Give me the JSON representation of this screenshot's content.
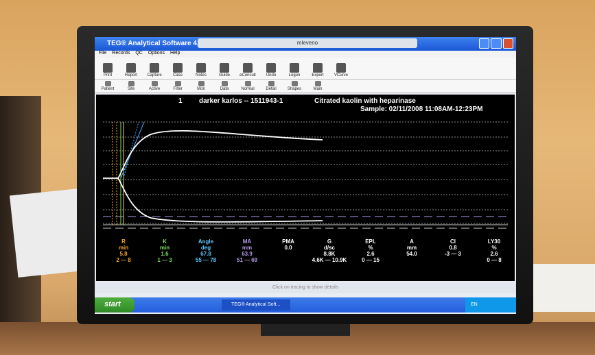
{
  "window": {
    "title": "TEG® Analytical Software 4.2.3",
    "tab_title": "mleveno"
  },
  "menu": [
    "File",
    "Records",
    "QC",
    "Options",
    "Help"
  ],
  "toolbar1": [
    "Print",
    "Report",
    "Capture",
    "Case",
    "Notes",
    "Guide",
    "eConsult",
    "Undo",
    "Logon",
    "Export",
    "VCurve"
  ],
  "toolbar2": [
    "Patient",
    "Site",
    "Active",
    "Filter",
    "Mon",
    "Data",
    "Normal",
    "Detail",
    "Shapes",
    "Main"
  ],
  "header": {
    "channel": "1",
    "patient": "darker karlos -- 1511943-1",
    "test": "Citrated kaolin with heparinase",
    "sample": "Sample: 02/11/2008 11:08AM-12:23PM"
  },
  "parameters": [
    {
      "name": "R",
      "unit": "min",
      "value": "5.8",
      "range": "2 — 8"
    },
    {
      "name": "K",
      "unit": "min",
      "value": "1.6",
      "range": "1 — 3"
    },
    {
      "name": "Angle",
      "unit": "deg",
      "value": "67.8",
      "range": "55 — 78"
    },
    {
      "name": "MA",
      "unit": "mm",
      "value": "63.9",
      "range": "51 — 69"
    },
    {
      "name": "PMA",
      "value": "0.0"
    },
    {
      "name": "G",
      "unit": "d/sc",
      "value": "8.8K",
      "range": "4.6K — 10.9K"
    },
    {
      "name": "EPL",
      "unit": "%",
      "value": "2.6",
      "range": "0 — 15"
    },
    {
      "name": "A",
      "unit": "mm",
      "value": "54.0"
    },
    {
      "name": "CI",
      "value": "0.8",
      "range": "-3 — 3"
    },
    {
      "name": "LY30",
      "unit": "%",
      "value": "2.6",
      "range": "0 — 8"
    }
  ],
  "status": "Click on tracing to show details",
  "taskbar": {
    "start": "start",
    "task": "TEG® Analytical Soft...",
    "lang": "EN"
  }
}
